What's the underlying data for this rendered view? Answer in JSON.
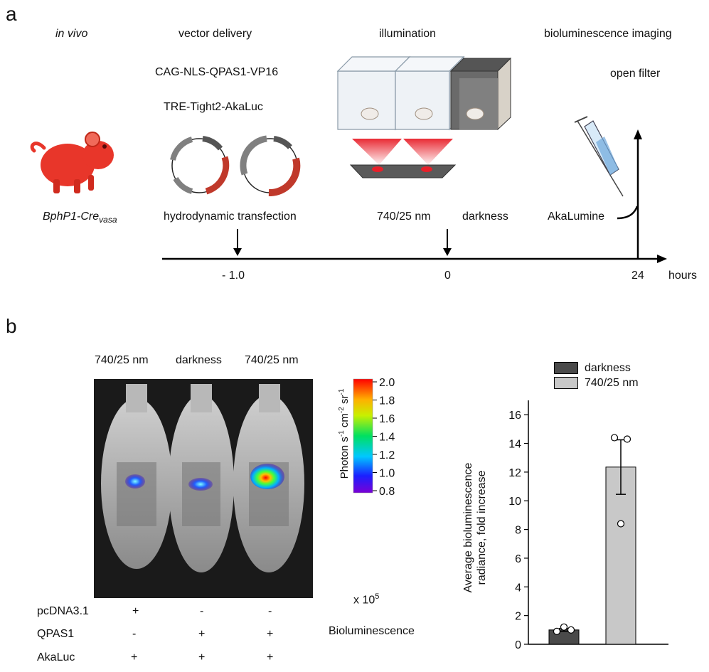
{
  "panel_a": {
    "label": "a",
    "in_vivo": "in vivo",
    "vector_delivery": "vector delivery",
    "plasmid_1": "CAG-NLS-QPAS1-VP16",
    "plasmid_2": "TRE-Tight2-AkaLuc",
    "illumination": "illumination",
    "imaging": "bioluminescence  imaging",
    "open_filter": "open filter",
    "mouse_main": "BphP1-Cre",
    "mouse_sub": "vasa",
    "hydrodynamic": "hydrodynamic transfection",
    "light_740": "740/25 nm",
    "darkness": "darkness",
    "akalumine": "AkaLumine",
    "timeline": {
      "ticks": [
        "- 1.0",
        "0",
        "24"
      ],
      "unit": "hours"
    },
    "colors": {
      "mouse": "#e8362a",
      "plasmid_red": "#c0392b",
      "plasmid_gray": "#808080",
      "light": "#e8202a"
    }
  },
  "panel_b": {
    "label": "b",
    "columns": [
      "740/25 nm",
      "darkness",
      "740/25 nm"
    ],
    "rows": [
      {
        "name": "pcDNA3.1",
        "values": [
          "+",
          "-",
          "-"
        ]
      },
      {
        "name": "QPAS1",
        "values": [
          "-",
          "+",
          "+"
        ]
      },
      {
        "name": "AkaLuc",
        "values": [
          "+",
          "+",
          "+"
        ]
      }
    ],
    "colorbar": {
      "ticks": [
        "2.0",
        "1.8",
        "1.6",
        "1.4",
        "1.2",
        "1.0",
        "0.8"
      ],
      "label_prefix": "Photon s",
      "multiplier_prefix": "x 10",
      "multiplier_exp": "5",
      "caption": "Bioluminescence"
    }
  },
  "chart_data": {
    "type": "bar",
    "categories": [
      "darkness",
      "740/25 nm"
    ],
    "values": [
      1.0,
      12.35
    ],
    "errors": [
      0.1,
      1.9
    ],
    "points": [
      [
        0.9,
        1.2,
        1.0
      ],
      [
        14.4,
        14.3,
        8.4
      ]
    ],
    "legend": [
      "darkness",
      "740/25 nm"
    ],
    "colors": [
      "#4a4a4a",
      "#c8c8c8"
    ],
    "ylabel_line1": "Average bioluminescence",
    "ylabel_line2": "radiance, fold increase",
    "ylim": [
      0,
      17
    ],
    "yticks": [
      0,
      2,
      4,
      6,
      8,
      10,
      12,
      14,
      16
    ],
    "legend_position": "top"
  }
}
